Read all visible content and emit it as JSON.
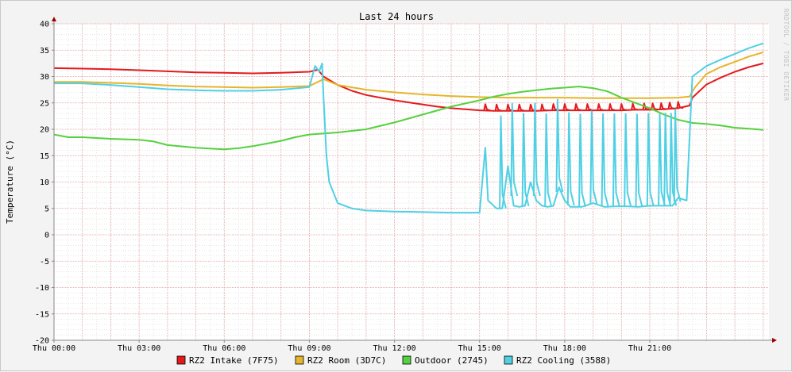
{
  "chart_data": {
    "type": "line",
    "title": "Last 24 hours",
    "ylabel": "Temperature (°C)",
    "xlabel": "",
    "watermark": "RRDTOOL / TOBI OETIKER",
    "ylim": [
      -20,
      40
    ],
    "xlim": [
      0,
      25.2
    ],
    "yticks": [
      "40",
      "35",
      "30",
      "25",
      "20",
      "15",
      "10",
      "5",
      "0",
      "-5",
      "-10",
      "-15",
      "-20"
    ],
    "xticks": [
      {
        "x": 0,
        "label": "Thu 00:00"
      },
      {
        "x": 3,
        "label": "Thu 03:00"
      },
      {
        "x": 6,
        "label": "Thu 06:00"
      },
      {
        "x": 9,
        "label": "Thu 09:00"
      },
      {
        "x": 12,
        "label": "Thu 12:00"
      },
      {
        "x": 15,
        "label": "Thu 15:00"
      },
      {
        "x": 18,
        "label": "Thu 18:00"
      },
      {
        "x": 21,
        "label": "Thu 21:00"
      }
    ],
    "grid": true,
    "legend_position": "bottom",
    "colors": {
      "background": "#f3f3f3",
      "canvas": "#ffffff",
      "major_grid": "#e8a0a0",
      "minor_grid": "#d8d8d8",
      "axis": "#888888",
      "arrow": "#990000"
    },
    "series": [
      {
        "name": "RZ2 Intake (7F75)",
        "color": "#e31a1c",
        "points": [
          [
            0,
            31.6
          ],
          [
            1,
            31.5
          ],
          [
            2,
            31.4
          ],
          [
            3,
            31.2
          ],
          [
            4,
            31.0
          ],
          [
            5,
            30.8
          ],
          [
            6,
            30.7
          ],
          [
            7,
            30.6
          ],
          [
            8,
            30.7
          ],
          [
            9,
            30.9
          ],
          [
            9.3,
            31.3
          ],
          [
            9.5,
            30.0
          ],
          [
            10,
            28.4
          ],
          [
            10.5,
            27.3
          ],
          [
            11,
            26.5
          ],
          [
            11.5,
            26.0
          ],
          [
            12,
            25.5
          ],
          [
            12.5,
            25.1
          ],
          [
            13,
            24.7
          ],
          [
            13.5,
            24.3
          ],
          [
            14,
            24.0
          ],
          [
            14.5,
            23.8
          ],
          [
            15,
            23.6
          ],
          [
            15.5,
            23.5
          ],
          [
            16,
            23.5
          ],
          [
            16.5,
            23.5
          ],
          [
            17,
            23.5
          ],
          [
            17.5,
            23.6
          ],
          [
            18,
            23.6
          ],
          [
            18.5,
            23.6
          ],
          [
            19,
            23.6
          ],
          [
            19.5,
            23.6
          ],
          [
            20,
            23.6
          ],
          [
            20.5,
            23.7
          ],
          [
            21,
            23.7
          ],
          [
            21.5,
            23.8
          ],
          [
            22,
            24.0
          ],
          [
            22.4,
            24.5
          ],
          [
            22.5,
            26.0
          ],
          [
            23,
            28.5
          ],
          [
            23.5,
            29.8
          ],
          [
            24,
            30.9
          ],
          [
            24.5,
            31.8
          ],
          [
            25,
            32.5
          ]
        ],
        "spikes": [
          15.2,
          15.6,
          16.0,
          16.4,
          16.8,
          17.2,
          17.6,
          18.0,
          18.4,
          18.8,
          19.2,
          19.6,
          20.0,
          20.4,
          20.8,
          21.1,
          21.4,
          21.7,
          22.0
        ],
        "spike_height": 1.2
      },
      {
        "name": "RZ2 Room (3D7C)",
        "color": "#e6b52b",
        "points": [
          [
            0,
            29.0
          ],
          [
            1,
            29.0
          ],
          [
            2,
            28.8
          ],
          [
            3,
            28.6
          ],
          [
            4,
            28.3
          ],
          [
            5,
            28.1
          ],
          [
            6,
            28.0
          ],
          [
            7,
            27.9
          ],
          [
            8,
            28.0
          ],
          [
            9,
            28.2
          ],
          [
            9.5,
            29.5
          ],
          [
            10,
            28.4
          ],
          [
            11,
            27.5
          ],
          [
            12,
            27.0
          ],
          [
            13,
            26.6
          ],
          [
            14,
            26.3
          ],
          [
            15,
            26.1
          ],
          [
            16,
            26.0
          ],
          [
            17,
            26.0
          ],
          [
            18,
            26.0
          ],
          [
            19,
            25.9
          ],
          [
            20,
            25.9
          ],
          [
            21,
            25.9
          ],
          [
            22,
            26.0
          ],
          [
            22.4,
            26.2
          ],
          [
            22.6,
            28.0
          ],
          [
            23,
            30.5
          ],
          [
            23.5,
            31.8
          ],
          [
            24,
            32.8
          ],
          [
            24.5,
            33.8
          ],
          [
            25,
            34.6
          ]
        ]
      },
      {
        "name": "Outdoor (2745)",
        "color": "#55d13f",
        "points": [
          [
            0,
            19.0
          ],
          [
            0.5,
            18.5
          ],
          [
            1,
            18.5
          ],
          [
            2,
            18.2
          ],
          [
            3,
            18.0
          ],
          [
            3.5,
            17.7
          ],
          [
            4,
            17.0
          ],
          [
            5,
            16.5
          ],
          [
            6,
            16.2
          ],
          [
            6.5,
            16.4
          ],
          [
            7,
            16.8
          ],
          [
            7.5,
            17.3
          ],
          [
            8,
            17.8
          ],
          [
            8.5,
            18.5
          ],
          [
            9,
            19.0
          ],
          [
            10,
            19.4
          ],
          [
            11,
            20.0
          ],
          [
            12,
            21.3
          ],
          [
            13,
            22.8
          ],
          [
            14,
            24.3
          ],
          [
            15,
            25.5
          ],
          [
            15.5,
            26.2
          ],
          [
            16,
            26.7
          ],
          [
            16.5,
            27.1
          ],
          [
            17,
            27.4
          ],
          [
            17.5,
            27.7
          ],
          [
            18,
            27.9
          ],
          [
            18.5,
            28.1
          ],
          [
            19,
            27.8
          ],
          [
            19.5,
            27.2
          ],
          [
            20,
            26.0
          ],
          [
            20.5,
            25.0
          ],
          [
            21,
            24.0
          ],
          [
            21.5,
            22.8
          ],
          [
            22,
            21.8
          ],
          [
            22.5,
            21.2
          ],
          [
            23,
            21.0
          ],
          [
            23.5,
            20.7
          ],
          [
            24,
            20.3
          ],
          [
            24.5,
            20.1
          ],
          [
            25,
            19.9
          ]
        ]
      },
      {
        "name": "RZ2 Cooling (3588)",
        "color": "#4fd0e4",
        "points": [
          [
            0,
            28.7
          ],
          [
            1,
            28.7
          ],
          [
            2,
            28.4
          ],
          [
            3,
            28.0
          ],
          [
            4,
            27.6
          ],
          [
            5,
            27.4
          ],
          [
            6,
            27.3
          ],
          [
            7,
            27.3
          ],
          [
            8,
            27.5
          ],
          [
            9,
            28.0
          ],
          [
            9.2,
            32.0
          ],
          [
            9.35,
            31.0
          ],
          [
            9.45,
            32.5
          ],
          [
            9.5,
            26.0
          ],
          [
            9.6,
            15.0
          ],
          [
            9.7,
            10.0
          ],
          [
            10,
            6.0
          ],
          [
            10.5,
            5.0
          ],
          [
            11,
            4.6
          ],
          [
            12,
            4.4
          ],
          [
            13,
            4.3
          ],
          [
            14,
            4.2
          ],
          [
            15,
            4.2
          ],
          [
            15.2,
            16.5
          ],
          [
            15.3,
            6.5
          ],
          [
            15.6,
            5.0
          ],
          [
            15.8,
            5.0
          ],
          [
            16,
            13.0
          ],
          [
            16.2,
            5.5
          ],
          [
            16.4,
            5.3
          ],
          [
            16.6,
            5.5
          ],
          [
            16.8,
            10.0
          ],
          [
            17,
            6.5
          ],
          [
            17.2,
            5.5
          ],
          [
            17.4,
            5.3
          ],
          [
            17.6,
            5.5
          ],
          [
            17.8,
            9.0
          ],
          [
            18,
            6.5
          ],
          [
            18.2,
            5.3
          ],
          [
            18.6,
            5.3
          ],
          [
            19.0,
            6.0
          ],
          [
            19.4,
            5.3
          ],
          [
            19.8,
            5.4
          ],
          [
            20.2,
            5.4
          ],
          [
            20.6,
            5.3
          ],
          [
            21.0,
            5.5
          ],
          [
            21.4,
            5.5
          ],
          [
            21.8,
            5.5
          ],
          [
            22.0,
            7.0
          ],
          [
            22.3,
            6.5
          ],
          [
            22.5,
            30.0
          ],
          [
            23,
            32.0
          ],
          [
            23.5,
            33.2
          ],
          [
            24,
            34.3
          ],
          [
            24.5,
            35.4
          ],
          [
            25,
            36.3
          ]
        ],
        "spikes": [
          15.75,
          16.15,
          16.55,
          16.95,
          17.35,
          17.75,
          18.15,
          18.55,
          18.95,
          19.35,
          19.75,
          20.15,
          20.55,
          20.95,
          21.35,
          21.55,
          21.75,
          21.9
        ],
        "spike_height": 17.5
      }
    ]
  }
}
